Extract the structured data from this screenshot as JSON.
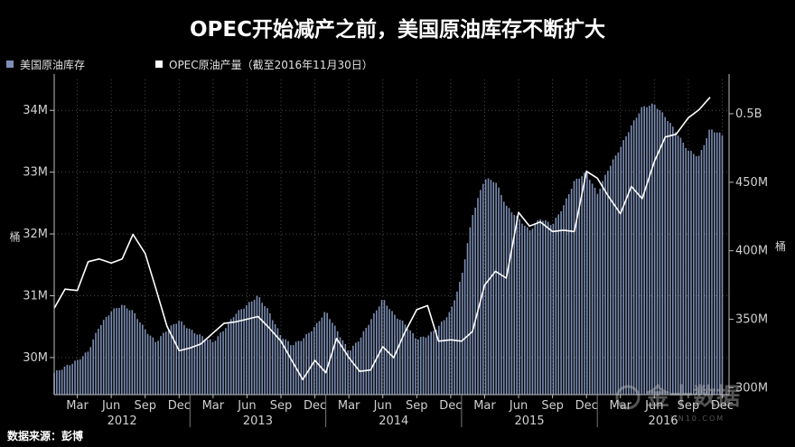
{
  "title": "OPEC开始减产之前，美国原油库存不断扩大",
  "source": "数据来源：彭博",
  "watermark": {
    "brand": "金十数据",
    "domain": "JIN10.COM"
  },
  "colors": {
    "background": "#000000",
    "bars": "#7d8fb6",
    "line": "#ffffff",
    "grid": "#4a4a4a",
    "text": "#d0d0d0",
    "title": "#ffffff"
  },
  "chart_data": {
    "type": "bar+line",
    "title": "OPEC开始减产之前，美国原油库存不断扩大",
    "left_axis": {
      "label": "桶",
      "range": [
        29.4,
        34.5
      ],
      "ticks": [
        30,
        31,
        32,
        33,
        34
      ],
      "tick_labels": [
        "30M",
        "31M",
        "32M",
        "33M",
        "34M"
      ]
    },
    "right_axis": {
      "label": "桶",
      "range": [
        295,
        525
      ],
      "ticks": [
        300,
        350,
        400,
        450,
        500
      ],
      "tick_labels": [
        "300M",
        "350M",
        "400M",
        "450M",
        "0.5B"
      ]
    },
    "x_axis": {
      "start": 2012.0,
      "end": 2016.97,
      "month_ticks": [
        {
          "label": "Mar",
          "x": 2012.17
        },
        {
          "label": "Jun",
          "x": 2012.42
        },
        {
          "label": "Sep",
          "x": 2012.67
        },
        {
          "label": "Dec",
          "x": 2012.92
        },
        {
          "label": "Mar",
          "x": 2013.17
        },
        {
          "label": "Jun",
          "x": 2013.42
        },
        {
          "label": "Sep",
          "x": 2013.67
        },
        {
          "label": "Dec",
          "x": 2013.92
        },
        {
          "label": "Mar",
          "x": 2014.17
        },
        {
          "label": "Jun",
          "x": 2014.42
        },
        {
          "label": "Sep",
          "x": 2014.67
        },
        {
          "label": "Dec",
          "x": 2014.92
        },
        {
          "label": "Mar",
          "x": 2015.17
        },
        {
          "label": "Jun",
          "x": 2015.42
        },
        {
          "label": "Sep",
          "x": 2015.67
        },
        {
          "label": "Dec",
          "x": 2015.92
        },
        {
          "label": "Mar",
          "x": 2016.17
        },
        {
          "label": "Jun",
          "x": 2016.42
        },
        {
          "label": "Sep",
          "x": 2016.67
        },
        {
          "label": "Dec",
          "x": 2016.92
        }
      ],
      "years": [
        "2012",
        "2013",
        "2014",
        "2015",
        "2016"
      ]
    },
    "grid": true,
    "legend_position": "top-left",
    "series": [
      {
        "name": "美国原油库存",
        "type": "bar",
        "axis": "left",
        "points": [
          [
            2012.0,
            29.75
          ],
          [
            2012.08,
            29.85
          ],
          [
            2012.17,
            29.95
          ],
          [
            2012.25,
            30.1
          ],
          [
            2012.33,
            30.5
          ],
          [
            2012.42,
            30.75
          ],
          [
            2012.5,
            30.85
          ],
          [
            2012.58,
            30.75
          ],
          [
            2012.67,
            30.45
          ],
          [
            2012.75,
            30.25
          ],
          [
            2012.83,
            30.45
          ],
          [
            2012.92,
            30.6
          ],
          [
            2013.0,
            30.45
          ],
          [
            2013.08,
            30.35
          ],
          [
            2013.17,
            30.25
          ],
          [
            2013.25,
            30.45
          ],
          [
            2013.33,
            30.7
          ],
          [
            2013.42,
            30.85
          ],
          [
            2013.5,
            31.0
          ],
          [
            2013.58,
            30.75
          ],
          [
            2013.67,
            30.35
          ],
          [
            2013.75,
            30.2
          ],
          [
            2013.83,
            30.3
          ],
          [
            2013.92,
            30.5
          ],
          [
            2014.0,
            30.75
          ],
          [
            2014.08,
            30.45
          ],
          [
            2014.17,
            30.1
          ],
          [
            2014.25,
            30.3
          ],
          [
            2014.33,
            30.6
          ],
          [
            2014.42,
            30.95
          ],
          [
            2014.5,
            30.7
          ],
          [
            2014.58,
            30.55
          ],
          [
            2014.67,
            30.3
          ],
          [
            2014.75,
            30.35
          ],
          [
            2014.83,
            30.5
          ],
          [
            2014.92,
            30.75
          ],
          [
            2015.0,
            31.3
          ],
          [
            2015.08,
            32.3
          ],
          [
            2015.17,
            32.9
          ],
          [
            2015.25,
            32.85
          ],
          [
            2015.33,
            32.45
          ],
          [
            2015.42,
            32.25
          ],
          [
            2015.5,
            32.05
          ],
          [
            2015.58,
            32.25
          ],
          [
            2015.67,
            32.15
          ],
          [
            2015.75,
            32.45
          ],
          [
            2015.83,
            32.85
          ],
          [
            2015.92,
            33.0
          ],
          [
            2016.0,
            32.65
          ],
          [
            2016.08,
            33.05
          ],
          [
            2016.17,
            33.4
          ],
          [
            2016.25,
            33.75
          ],
          [
            2016.33,
            34.05
          ],
          [
            2016.42,
            34.1
          ],
          [
            2016.5,
            33.9
          ],
          [
            2016.58,
            33.65
          ],
          [
            2016.67,
            33.35
          ],
          [
            2016.75,
            33.25
          ],
          [
            2016.83,
            33.7
          ],
          [
            2016.92,
            33.6
          ]
        ]
      },
      {
        "name": "OPEC原油产量（截至2016年11月30日）",
        "type": "line",
        "axis": "right",
        "points": [
          [
            2012.0,
            358
          ],
          [
            2012.08,
            372
          ],
          [
            2012.17,
            371
          ],
          [
            2012.25,
            392
          ],
          [
            2012.33,
            394
          ],
          [
            2012.42,
            391
          ],
          [
            2012.5,
            394
          ],
          [
            2012.58,
            412
          ],
          [
            2012.67,
            398
          ],
          [
            2012.75,
            372
          ],
          [
            2012.83,
            345
          ],
          [
            2012.92,
            327
          ],
          [
            2013.0,
            329
          ],
          [
            2013.08,
            332
          ],
          [
            2013.17,
            340
          ],
          [
            2013.25,
            347
          ],
          [
            2013.33,
            348
          ],
          [
            2013.42,
            350
          ],
          [
            2013.5,
            352
          ],
          [
            2013.58,
            344
          ],
          [
            2013.67,
            334
          ],
          [
            2013.75,
            320
          ],
          [
            2013.83,
            306
          ],
          [
            2013.92,
            320
          ],
          [
            2014.0,
            311
          ],
          [
            2014.08,
            336
          ],
          [
            2014.17,
            322
          ],
          [
            2014.25,
            312
          ],
          [
            2014.33,
            313
          ],
          [
            2014.42,
            330
          ],
          [
            2014.5,
            322
          ],
          [
            2014.58,
            340
          ],
          [
            2014.67,
            357
          ],
          [
            2014.75,
            360
          ],
          [
            2014.83,
            334
          ],
          [
            2014.92,
            335
          ],
          [
            2015.0,
            334
          ],
          [
            2015.08,
            341
          ],
          [
            2015.17,
            375
          ],
          [
            2015.25,
            385
          ],
          [
            2015.33,
            380
          ],
          [
            2015.42,
            428
          ],
          [
            2015.5,
            418
          ],
          [
            2015.58,
            421
          ],
          [
            2015.67,
            414
          ],
          [
            2015.75,
            415
          ],
          [
            2015.83,
            414
          ],
          [
            2015.92,
            458
          ],
          [
            2016.0,
            453
          ],
          [
            2016.08,
            440
          ],
          [
            2016.17,
            427
          ],
          [
            2016.25,
            447
          ],
          [
            2016.33,
            438
          ],
          [
            2016.42,
            465
          ],
          [
            2016.5,
            483
          ],
          [
            2016.58,
            485
          ],
          [
            2016.67,
            497
          ],
          [
            2016.75,
            503
          ],
          [
            2016.83,
            512
          ]
        ]
      }
    ]
  }
}
